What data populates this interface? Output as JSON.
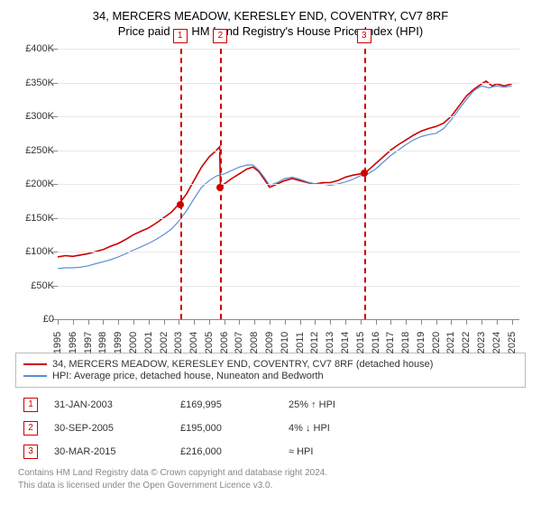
{
  "title_line1": "34, MERCERS MEADOW, KERESLEY END, COVENTRY, CV7 8RF",
  "title_line2": "Price paid vs. HM Land Registry's House Price Index (HPI)",
  "chart": {
    "type": "line",
    "xlim": [
      1995,
      2025.5
    ],
    "ylim": [
      0,
      400000
    ],
    "ytick_step": 50000,
    "ytick_labels": [
      "£0",
      "£50K",
      "£100K",
      "£150K",
      "£200K",
      "£250K",
      "£300K",
      "£350K",
      "£400K"
    ],
    "xticks": [
      1995,
      1996,
      1997,
      1998,
      1999,
      2000,
      2001,
      2002,
      2003,
      2004,
      2005,
      2006,
      2007,
      2008,
      2009,
      2010,
      2011,
      2012,
      2013,
      2014,
      2015,
      2016,
      2017,
      2018,
      2019,
      2020,
      2021,
      2022,
      2023,
      2024,
      2025
    ],
    "background_color": "#ffffff",
    "grid_color": "#e8e8e8",
    "axis_color": "#888888",
    "label_fontsize": 11,
    "series": [
      {
        "name": "red",
        "color": "#cc0000",
        "width": 1.6,
        "points": [
          [
            1995,
            92000
          ],
          [
            1995.5,
            94000
          ],
          [
            1996,
            93000
          ],
          [
            1996.5,
            95000
          ],
          [
            1997,
            97000
          ],
          [
            1997.5,
            100000
          ],
          [
            1998,
            103000
          ],
          [
            1998.5,
            108000
          ],
          [
            1999,
            112000
          ],
          [
            1999.5,
            118000
          ],
          [
            2000,
            125000
          ],
          [
            2000.5,
            130000
          ],
          [
            2001,
            135000
          ],
          [
            2001.5,
            142000
          ],
          [
            2002,
            150000
          ],
          [
            2002.5,
            158000
          ],
          [
            2003,
            170000
          ],
          [
            2003.5,
            185000
          ],
          [
            2004,
            205000
          ],
          [
            2004.5,
            225000
          ],
          [
            2005,
            240000
          ],
          [
            2005.4,
            248000
          ],
          [
            2005.7,
            255000
          ],
          [
            2005.75,
            195000
          ],
          [
            2006,
            200000
          ],
          [
            2006.5,
            208000
          ],
          [
            2007,
            215000
          ],
          [
            2007.5,
            222000
          ],
          [
            2007.9,
            225000
          ],
          [
            2008.3,
            218000
          ],
          [
            2008.7,
            205000
          ],
          [
            2009,
            195000
          ],
          [
            2009.5,
            200000
          ],
          [
            2010,
            205000
          ],
          [
            2010.5,
            208000
          ],
          [
            2011,
            205000
          ],
          [
            2011.5,
            202000
          ],
          [
            2012,
            200000
          ],
          [
            2012.5,
            202000
          ],
          [
            2013,
            202000
          ],
          [
            2013.5,
            205000
          ],
          [
            2014,
            210000
          ],
          [
            2014.5,
            213000
          ],
          [
            2015,
            215000
          ],
          [
            2015.25,
            216000
          ],
          [
            2015.5,
            220000
          ],
          [
            2016,
            230000
          ],
          [
            2016.5,
            240000
          ],
          [
            2017,
            250000
          ],
          [
            2017.5,
            258000
          ],
          [
            2018,
            265000
          ],
          [
            2018.5,
            272000
          ],
          [
            2019,
            278000
          ],
          [
            2019.5,
            282000
          ],
          [
            2020,
            285000
          ],
          [
            2020.5,
            290000
          ],
          [
            2021,
            300000
          ],
          [
            2021.5,
            315000
          ],
          [
            2022,
            330000
          ],
          [
            2022.5,
            340000
          ],
          [
            2023,
            348000
          ],
          [
            2023.3,
            352000
          ],
          [
            2023.7,
            345000
          ],
          [
            2024,
            348000
          ],
          [
            2024.5,
            345000
          ],
          [
            2025,
            348000
          ]
        ]
      },
      {
        "name": "blue",
        "color": "#5a8fd6",
        "width": 1.2,
        "points": [
          [
            1995,
            75000
          ],
          [
            1995.5,
            76000
          ],
          [
            1996,
            76000
          ],
          [
            1996.5,
            77000
          ],
          [
            1997,
            79000
          ],
          [
            1997.5,
            82000
          ],
          [
            1998,
            85000
          ],
          [
            1998.5,
            88000
          ],
          [
            1999,
            92000
          ],
          [
            1999.5,
            97000
          ],
          [
            2000,
            102000
          ],
          [
            2000.5,
            107000
          ],
          [
            2001,
            112000
          ],
          [
            2001.5,
            118000
          ],
          [
            2002,
            125000
          ],
          [
            2002.5,
            133000
          ],
          [
            2003,
            145000
          ],
          [
            2003.5,
            160000
          ],
          [
            2004,
            178000
          ],
          [
            2004.5,
            195000
          ],
          [
            2005,
            205000
          ],
          [
            2005.5,
            212000
          ],
          [
            2006,
            215000
          ],
          [
            2006.5,
            220000
          ],
          [
            2007,
            225000
          ],
          [
            2007.5,
            228000
          ],
          [
            2007.9,
            228000
          ],
          [
            2008.3,
            220000
          ],
          [
            2008.7,
            208000
          ],
          [
            2009,
            198000
          ],
          [
            2009.5,
            202000
          ],
          [
            2010,
            208000
          ],
          [
            2010.5,
            210000
          ],
          [
            2011,
            207000
          ],
          [
            2011.5,
            203000
          ],
          [
            2012,
            200000
          ],
          [
            2012.5,
            200000
          ],
          [
            2013,
            198000
          ],
          [
            2013.5,
            200000
          ],
          [
            2014,
            203000
          ],
          [
            2014.5,
            207000
          ],
          [
            2015,
            212000
          ],
          [
            2015.5,
            215000
          ],
          [
            2016,
            222000
          ],
          [
            2016.5,
            232000
          ],
          [
            2017,
            242000
          ],
          [
            2017.5,
            250000
          ],
          [
            2018,
            258000
          ],
          [
            2018.5,
            265000
          ],
          [
            2019,
            270000
          ],
          [
            2019.5,
            273000
          ],
          [
            2020,
            275000
          ],
          [
            2020.5,
            282000
          ],
          [
            2021,
            295000
          ],
          [
            2021.5,
            310000
          ],
          [
            2022,
            325000
          ],
          [
            2022.5,
            338000
          ],
          [
            2023,
            345000
          ],
          [
            2023.5,
            342000
          ],
          [
            2024,
            345000
          ],
          [
            2024.5,
            343000
          ],
          [
            2025,
            345000
          ]
        ]
      }
    ],
    "markers": [
      {
        "id": "1",
        "x": 2003.08,
        "dot_y": 169995
      },
      {
        "id": "2",
        "x": 2005.75,
        "dot_y": 195000
      },
      {
        "id": "3",
        "x": 2015.24,
        "dot_y": 216000
      }
    ]
  },
  "legend": {
    "red_label": "34, MERCERS MEADOW, KERESLEY END, COVENTRY, CV7 8RF (detached house)",
    "blue_label": "HPI: Average price, detached house, Nuneaton and Bedworth",
    "red_color": "#cc0000",
    "blue_color": "#5a8fd6"
  },
  "events": [
    {
      "id": "1",
      "date": "31-JAN-2003",
      "price": "£169,995",
      "delta": "25% ↑ HPI"
    },
    {
      "id": "2",
      "date": "30-SEP-2005",
      "price": "£195,000",
      "delta": "4% ↓ HPI"
    },
    {
      "id": "3",
      "date": "30-MAR-2015",
      "price": "£216,000",
      "delta": "≈ HPI"
    }
  ],
  "footer_line1": "Contains HM Land Registry data © Crown copyright and database right 2024.",
  "footer_line2": "This data is licensed under the Open Government Licence v3.0."
}
